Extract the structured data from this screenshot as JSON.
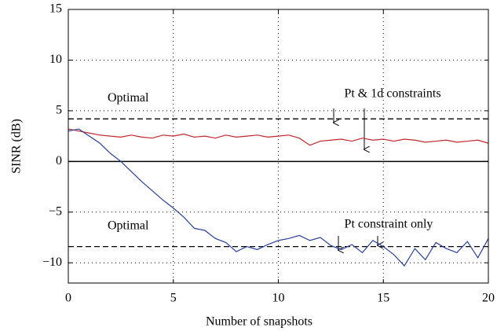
{
  "chart_data": {
    "type": "line",
    "xlabel": "Number of snapshots",
    "ylabel": "SINR (dB)",
    "x": [
      0,
      0.5,
      1,
      1.5,
      2,
      2.5,
      3,
      3.5,
      4,
      4.5,
      5,
      5.5,
      6,
      6.5,
      7,
      7.5,
      8,
      8.5,
      9,
      9.5,
      10,
      10.5,
      11,
      11.5,
      12,
      12.5,
      13,
      13.5,
      14,
      14.5,
      15,
      15.5,
      16,
      16.5,
      17,
      17.5,
      18,
      18.5,
      19,
      19.5,
      20
    ],
    "series": [
      {
        "color": "#c0272d",
        "values": [
          3.2,
          3.0,
          2.8,
          2.6,
          2.5,
          2.4,
          2.6,
          2.4,
          2.3,
          2.6,
          2.5,
          2.7,
          2.4,
          2.5,
          2.3,
          2.6,
          2.4,
          2.5,
          2.6,
          2.4,
          2.5,
          2.6,
          2.3,
          1.6,
          2.0,
          2.1,
          2.2,
          2.0,
          2.3,
          2.1,
          2.2,
          2.0,
          2.2,
          2.1,
          1.9,
          2.0,
          2.1,
          1.9,
          2.0,
          2.1,
          1.8
        ]
      },
      {
        "color": "#2a3f9a",
        "values": [
          3.0,
          3.2,
          2.5,
          1.8,
          0.8,
          0.0,
          -1.0,
          -2.0,
          -2.9,
          -3.8,
          -4.6,
          -5.5,
          -6.6,
          -6.8,
          -7.6,
          -8.0,
          -8.9,
          -8.4,
          -8.7,
          -8.2,
          -7.8,
          -7.6,
          -7.3,
          -7.8,
          -7.5,
          -8.3,
          -8.7,
          -8.2,
          -9.0,
          -7.8,
          -8.4,
          -9.2,
          -10.3,
          -8.6,
          -9.7,
          -8.0,
          -8.6,
          -9.0,
          -7.9,
          -9.5,
          -7.6
        ]
      }
    ],
    "reference_lines": [
      {
        "value": 4.2,
        "label": "Optimal"
      },
      {
        "value": -8.4,
        "label": "Optimal"
      }
    ],
    "annotations": [
      "Pt & 1d constraints",
      "Pt constraint only"
    ],
    "xlim": [
      0,
      20
    ],
    "xticks": [
      0,
      5,
      10,
      15,
      20
    ],
    "ylim": [
      -12,
      15
    ],
    "yticks": [
      {
        "value": -10,
        "label": "−10"
      },
      {
        "value": -5,
        "label": "−5"
      },
      0,
      5,
      10,
      15
    ],
    "grid": true
  }
}
